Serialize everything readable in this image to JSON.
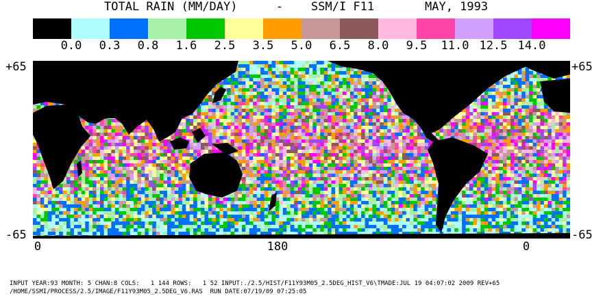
{
  "title": {
    "main": "TOTAL RAIN (MM/DAY)",
    "sep": "-",
    "sensor": "SSM/I F11",
    "date": "MAY, 1993"
  },
  "legend": {
    "colors": [
      "#000000",
      "#b0ffff",
      "#0070ff",
      "#a8f0a8",
      "#00c800",
      "#ffff9c",
      "#ff9c00",
      "#c89898",
      "#8c5a5a",
      "#ffb8e0",
      "#ff46a8",
      "#d2a0ff",
      "#a046ff",
      "#ff00ff"
    ],
    "ticks": [
      "0.0",
      "0.3",
      "0.8",
      "1.6",
      "2.5",
      "3.5",
      "5.0",
      "6.5",
      "8.0",
      "9.5",
      "11.0",
      "12.5",
      "14.0"
    ]
  },
  "map": {
    "lat_top": "+65",
    "lat_bottom": "-65",
    "lon_left": "0",
    "lon_center": "180",
    "lon_right": "0",
    "ocean_background": "#b0ffff",
    "land_color": "#000000"
  },
  "footer": {
    "line1": "INPUT YEAR:93 MONTH: 5 CHAN:8 COLS:   1 144 ROWS:   1 52 INPUT:./2.5/HIST/F11Y93M05_2.5DEG_HIST_V6\\TMADE:JUL 19 04:07:02 2009 REV+65",
    "line2": "/HOME/SSMI/PROCESS/2.5/IMAGE/F11Y93M05_2.5DEG_V6.RAS  RUN DATE:07/19/09 07:25:05"
  }
}
